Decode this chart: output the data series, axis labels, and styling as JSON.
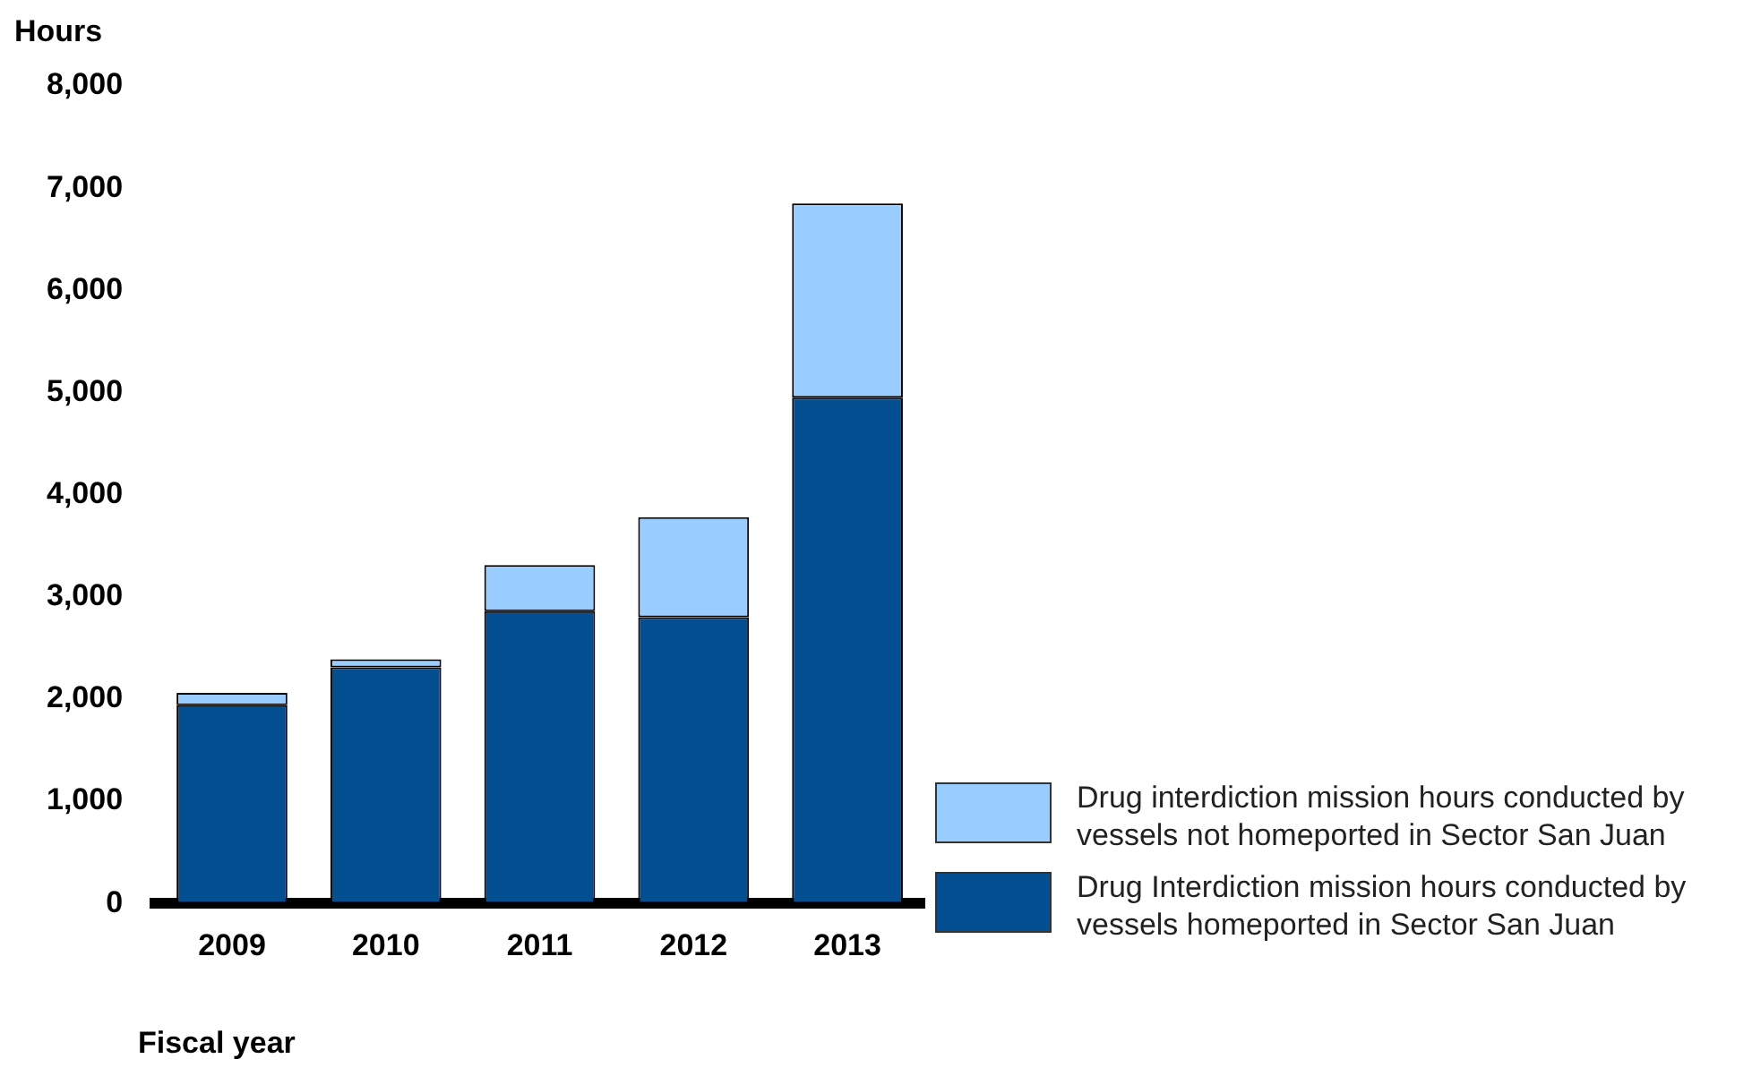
{
  "chart_data": {
    "type": "bar",
    "xlabel": "Fiscal year",
    "ylabel": "Hours",
    "categories": [
      "2009",
      "2010",
      "2011",
      "2012",
      "2013"
    ],
    "stacked": true,
    "series": [
      {
        "name": "Drug Interdiction mission hours conducted by vessels homeported in Sector San Juan",
        "color": "#044f92",
        "values": [
          1940,
          2310,
          2860,
          2800,
          4950
        ]
      },
      {
        "name": "Drug interdiction mission hours conducted by vessels not homeported in Sector San Juan",
        "color": "#99ccff",
        "values": [
          120,
          80,
          450,
          980,
          1900
        ]
      }
    ],
    "ylim": [
      0,
      8000
    ],
    "yticks": [
      {
        "value": 0,
        "label": "0"
      },
      {
        "value": 1000,
        "label": "1,000"
      },
      {
        "value": 2000,
        "label": "2,000"
      },
      {
        "value": 3000,
        "label": "3,000"
      },
      {
        "value": 4000,
        "label": "4,000"
      },
      {
        "value": 5000,
        "label": "5,000"
      },
      {
        "value": 6000,
        "label": "6,000"
      },
      {
        "value": 7000,
        "label": "7,000"
      },
      {
        "value": 8000,
        "label": "8,000"
      }
    ],
    "grid": false,
    "legend": "bottom right"
  }
}
